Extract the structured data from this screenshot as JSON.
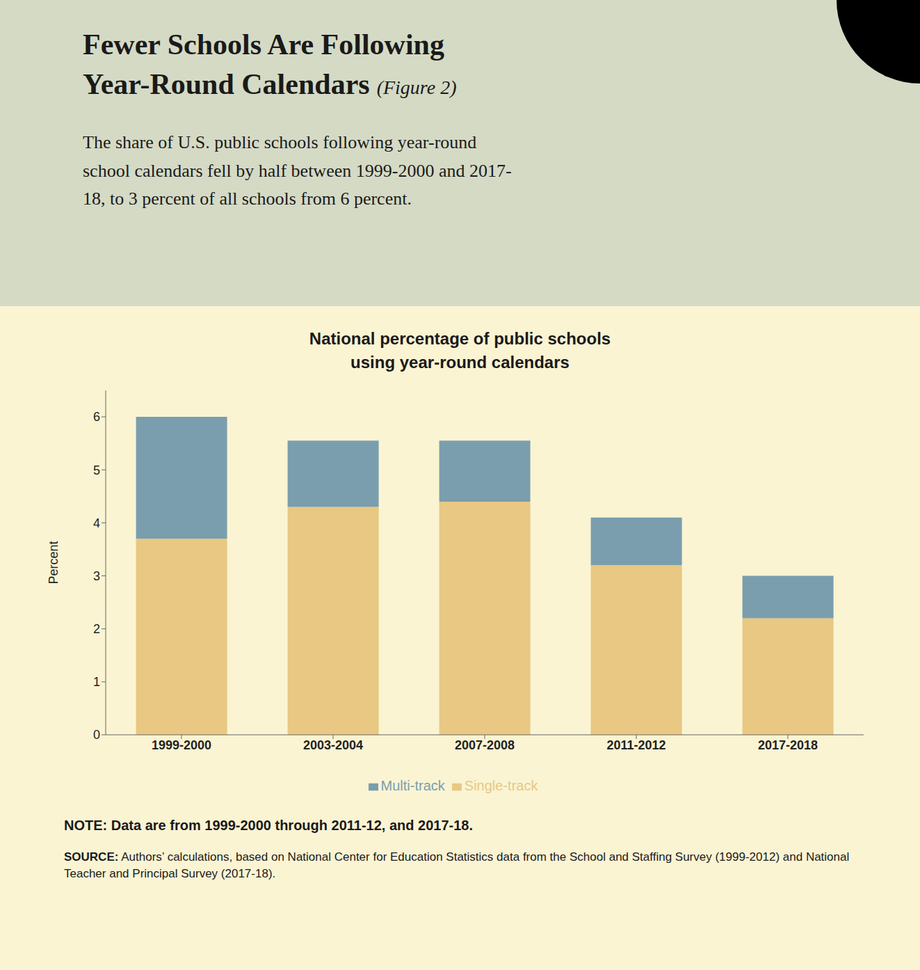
{
  "chart_data": {
    "type": "bar",
    "title": "Fewer Schools Are Following\nYear-Round Calendars",
    "title_suffix": "(Figure 2)",
    "subtitle": "The share of U.S. public schools following year-round\nschool calendars fell by half between 1999-2000 and 2017-\n18, to 3 percent of all schools from 6 percent.",
    "chart_title": "National percentage of public schools\nusing year-round calendars",
    "categories": [
      "1999-2000",
      "2003-2004",
      "2007-2008",
      "2011-2012",
      "2017-2018"
    ],
    "series": [
      {
        "name": "Single-track",
        "color": "#E8C882",
        "values": [
          3.7,
          4.3,
          4.4,
          3.2,
          2.2
        ]
      },
      {
        "name": "Multi-track",
        "color": "#7A9EAD",
        "values": [
          2.3,
          1.25,
          1.15,
          0.9,
          0.8
        ]
      }
    ],
    "ylabel": "Percent",
    "ylim": [
      0,
      6.5
    ],
    "yticks": [
      0,
      1,
      2,
      3,
      4,
      5,
      6
    ],
    "stacked": true,
    "grid": false,
    "legend": "bottom",
    "note": "NOTE: Data are from 1999-2000 through 2011-12, and 2017-18.",
    "source_label": "SOURCE:",
    "source": "Authors’ calculations, based on National Center for Education Statistics data from the School and Staffing Survey (1999-2012) and National Teacher and Principal Survey (2017-18)."
  }
}
